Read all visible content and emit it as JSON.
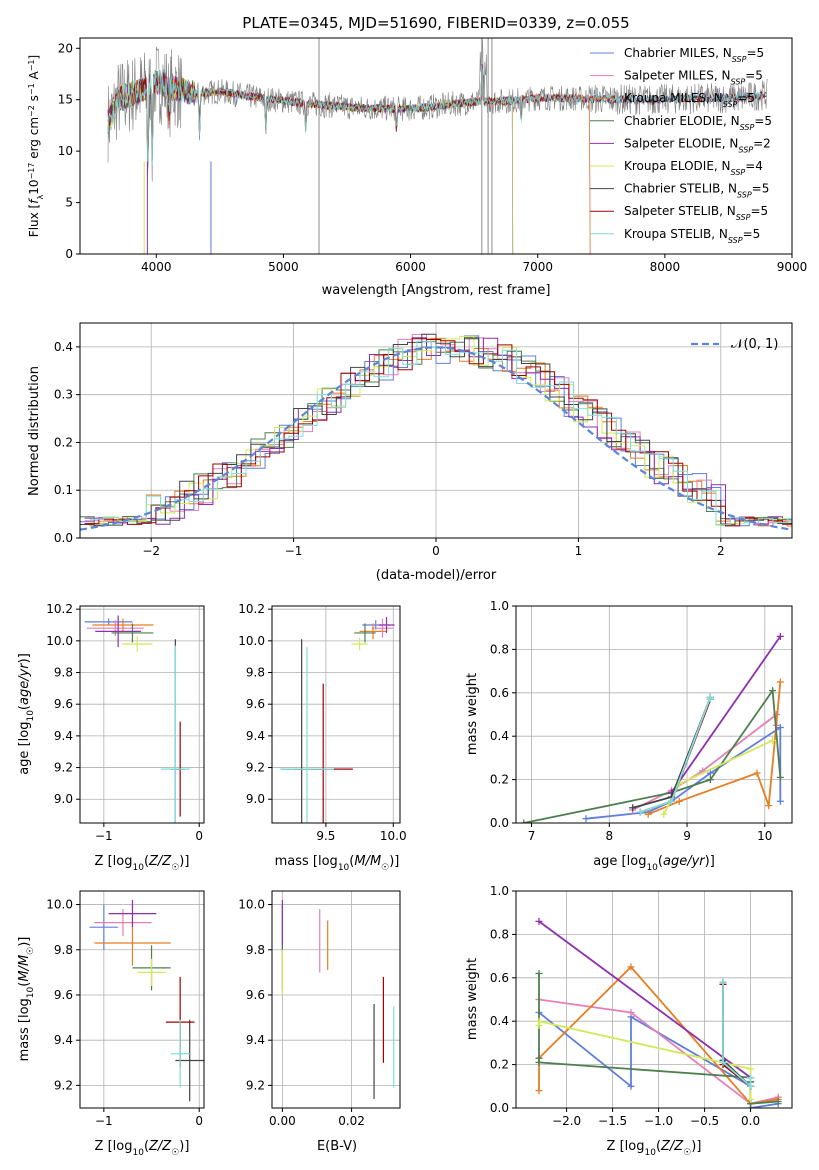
{
  "figure": {
    "title": "PLATE=0345, MJD=51690, FIBERID=0339, z=0.055"
  },
  "colors": {
    "Chabrier MILES": "#5f7fde",
    "Salpeter MILES": "#e57fb5",
    "Kroupa MILES": "#e67e22",
    "Chabrier ELODIE": "#4f7f4f",
    "Salpeter ELODIE": "#8e2fb0",
    "Kroupa ELODIE": "#d4e85a",
    "Chabrier STELIB": "#444444",
    "Salpeter STELIB": "#a00000",
    "Kroupa STELIB": "#7fdede",
    "data": "#808080"
  },
  "chart_data": [
    {
      "id": "spectrum",
      "type": "line",
      "xlabel": "wavelength [Angstrom, rest frame]",
      "ylabel": "Flux [f_λ10^-17 erg cm^-2 s^-1 A^-1]",
      "xlim": [
        3400,
        9000
      ],
      "ylim": [
        0,
        21
      ],
      "xticks": [
        4000,
        5000,
        6000,
        7000,
        8000,
        9000
      ],
      "yticks": [
        0,
        5,
        10,
        15,
        20
      ],
      "legend_position": "upper right",
      "legend": [
        {
          "name": "Chabrier MILES",
          "base": "Chabrier MILES, N",
          "sub": "SSP",
          "tail": "=5"
        },
        {
          "name": "Salpeter MILES",
          "base": "Salpeter MILES, N",
          "sub": "SSP",
          "tail": "=5"
        },
        {
          "name": "Kroupa MILES",
          "base": "Kroupa MILES, N",
          "sub": "SSP",
          "tail": "=5"
        },
        {
          "name": "Chabrier ELODIE",
          "base": "Chabrier ELODIE, N",
          "sub": "SSP",
          "tail": "=5"
        },
        {
          "name": "Salpeter ELODIE",
          "base": "Salpeter ELODIE, N",
          "sub": "SSP",
          "tail": "=2"
        },
        {
          "name": "Kroupa ELODIE",
          "base": "Kroupa ELODIE, N",
          "sub": "SSP",
          "tail": "=4"
        },
        {
          "name": "Chabrier STELIB",
          "base": "Chabrier STELIB, N",
          "sub": "SSP",
          "tail": "=5"
        },
        {
          "name": "Salpeter STELIB",
          "base": "Salpeter STELIB, N",
          "sub": "SSP",
          "tail": "=5"
        },
        {
          "name": "Kroupa STELIB",
          "base": "Kroupa STELIB, N",
          "sub": "SSP",
          "tail": "=5"
        }
      ],
      "continuum": [
        [
          3600,
          12.5
        ],
        [
          3650,
          13.5
        ],
        [
          3700,
          15
        ],
        [
          3800,
          15.5
        ],
        [
          3900,
          16
        ],
        [
          4000,
          16.8
        ],
        [
          4100,
          16.2
        ],
        [
          4300,
          15.6
        ],
        [
          4500,
          15.8
        ],
        [
          4800,
          15.2
        ],
        [
          5200,
          14.6
        ],
        [
          5600,
          14.2
        ],
        [
          6000,
          14.1
        ],
        [
          6500,
          14.8
        ],
        [
          6800,
          14.9
        ],
        [
          7000,
          15.2
        ],
        [
          7400,
          15.1
        ],
        [
          7800,
          15
        ],
        [
          8200,
          15.1
        ],
        [
          8600,
          15.2
        ],
        [
          8800,
          15.5
        ]
      ],
      "model_end": [
        {
          "name": "Chabrier MILES",
          "end": 8800
        },
        {
          "name": "Salpeter MILES",
          "end": 7410
        },
        {
          "name": "Kroupa MILES",
          "end": 7410
        },
        {
          "name": "Chabrier ELODIE",
          "end": 6800
        },
        {
          "name": "Salpeter ELODIE",
          "end": 6800
        },
        {
          "name": "Kroupa ELODIE",
          "end": 6800
        },
        {
          "name": "Chabrier STELIB",
          "end": 8800
        },
        {
          "name": "Salpeter STELIB",
          "end": 8800
        },
        {
          "name": "Kroupa STELIB",
          "end": 8800
        }
      ]
    },
    {
      "id": "residuals",
      "type": "line",
      "xlabel": "(data-model)/error",
      "ylabel": "Normed distribution",
      "xlim": [
        -2.5,
        2.5
      ],
      "ylim": [
        0,
        0.45
      ],
      "xticks": [
        -2,
        -1,
        0,
        1,
        2
      ],
      "yticks": [
        0.0,
        0.1,
        0.2,
        0.3,
        0.4
      ],
      "legend_position": "upper right",
      "reference": {
        "name": "N(0,1)",
        "label": "𝒩(0, 1)",
        "mean": 0,
        "sigma": 1
      }
    },
    {
      "id": "age_vs_z",
      "type": "scatter",
      "xlabel": "Z [log10(Z/Z☉)]",
      "ylabel": "age [log10(age/yr)]",
      "xlim": [
        -1.25,
        0.05
      ],
      "ylim": [
        8.85,
        10.22
      ],
      "xticks": [
        -1,
        0
      ],
      "yticks": [
        9.0,
        9.2,
        9.4,
        9.6,
        9.8,
        10.0,
        10.2
      ],
      "points": [
        {
          "name": "Chabrier MILES",
          "x": -0.95,
          "y": 10.12,
          "xerr": 0.25,
          "yerr": 0.02
        },
        {
          "name": "Salpeter MILES",
          "x": -0.88,
          "y": 10.08,
          "xerr": 0.3,
          "yerr": 0.05
        },
        {
          "name": "Kroupa MILES",
          "x": -0.8,
          "y": 10.1,
          "xerr": 0.32,
          "yerr": 0.04
        },
        {
          "name": "Chabrier ELODIE",
          "x": -0.7,
          "y": 10.05,
          "xerr": 0.22,
          "yerr": 0.06
        },
        {
          "name": "Salpeter ELODIE",
          "x": -0.85,
          "y": 10.06,
          "xerr": 0.24,
          "yerr": 0.1
        },
        {
          "name": "Kroupa ELODIE",
          "x": -0.65,
          "y": 9.98,
          "xerr": 0.16,
          "yerr": 0.05
        },
        {
          "name": "Chabrier STELIB",
          "x": -0.25,
          "y": 9.19,
          "xerr": 0.05,
          "yerr": 0.82
        },
        {
          "name": "Salpeter STELIB",
          "x": -0.2,
          "y": 9.19,
          "xerr": 0.05,
          "yerr": 0.3
        },
        {
          "name": "Kroupa STELIB",
          "x": -0.25,
          "y": 9.19,
          "xerr": 0.15,
          "yerr": 0.78
        }
      ]
    },
    {
      "id": "age_vs_mass",
      "type": "scatter",
      "xlabel": "mass [log10(M/M☉)]",
      "ylabel": "",
      "xlim": [
        9.1,
        10.05
      ],
      "ylim": [
        8.85,
        10.22
      ],
      "xticks": [
        9.5,
        10.0
      ],
      "yticks": [
        9.0,
        9.2,
        9.4,
        9.6,
        9.8,
        10.0,
        10.2
      ],
      "points": [
        {
          "name": "Chabrier MILES",
          "x": 9.87,
          "y": 10.1,
          "xerr": 0.1,
          "yerr": 0.03
        },
        {
          "name": "Salpeter MILES",
          "x": 9.92,
          "y": 10.08,
          "xerr": 0.08,
          "yerr": 0.06
        },
        {
          "name": "Kroupa MILES",
          "x": 9.85,
          "y": 10.06,
          "xerr": 0.1,
          "yerr": 0.05
        },
        {
          "name": "Chabrier ELODIE",
          "x": 9.79,
          "y": 10.05,
          "xerr": 0.08,
          "yerr": 0.06
        },
        {
          "name": "Salpeter ELODIE",
          "x": 9.95,
          "y": 10.1,
          "xerr": 0.06,
          "yerr": 0.05
        },
        {
          "name": "Kroupa ELODIE",
          "x": 9.75,
          "y": 9.98,
          "xerr": 0.06,
          "yerr": 0.04
        },
        {
          "name": "Chabrier STELIB",
          "x": 9.32,
          "y": 9.19,
          "xerr": 0.15,
          "yerr": 0.82
        },
        {
          "name": "Salpeter STELIB",
          "x": 9.48,
          "y": 9.19,
          "xerr": 0.22,
          "yerr": 0.54
        },
        {
          "name": "Kroupa STELIB",
          "x": 9.36,
          "y": 9.19,
          "xerr": 0.2,
          "yerr": 0.77
        }
      ]
    },
    {
      "id": "mass_weight_vs_age",
      "type": "line",
      "xlabel": "age [log10(age/yr)]",
      "ylabel": "mass weight",
      "xlim": [
        6.8,
        10.35
      ],
      "ylim": [
        0,
        1
      ],
      "xticks": [
        7,
        8,
        9,
        10
      ],
      "yticks": [
        0.0,
        0.2,
        0.4,
        0.6,
        0.8,
        1.0
      ],
      "series": [
        {
          "name": "Chabrier MILES",
          "x": [
            7.7,
            8.5,
            8.8,
            9.3,
            10.2,
            10.2
          ],
          "y": [
            0.02,
            0.05,
            0.1,
            0.23,
            0.44,
            0.1
          ]
        },
        {
          "name": "Salpeter MILES",
          "x": [
            8.3,
            8.8,
            9.2,
            10.15,
            10.15
          ],
          "y": [
            0.06,
            0.15,
            0.24,
            0.5,
            0.45
          ]
        },
        {
          "name": "Kroupa MILES",
          "x": [
            8.5,
            8.9,
            9.9,
            10.05,
            10.2
          ],
          "y": [
            0.04,
            0.1,
            0.23,
            0.08,
            0.65
          ]
        },
        {
          "name": "Chabrier ELODIE",
          "x": [
            6.9,
            8.8,
            9.3,
            10.1,
            10.2
          ],
          "y": [
            0.0,
            0.14,
            0.2,
            0.61,
            0.21
          ]
        },
        {
          "name": "Salpeter ELODIE",
          "x": [
            8.8,
            10.2
          ],
          "y": [
            0.14,
            0.86
          ]
        },
        {
          "name": "Kroupa ELODIE",
          "x": [
            8.7,
            8.9,
            10.1
          ],
          "y": [
            0.04,
            0.18,
            0.38
          ]
        },
        {
          "name": "Chabrier STELIB",
          "x": [
            8.3,
            8.8,
            9.3,
            9.3
          ],
          "y": [
            0.07,
            0.12,
            0.58,
            0.57
          ]
        },
        {
          "name": "Salpeter STELIB",
          "x": [
            8.4,
            8.8,
            9.3
          ],
          "y": [
            0.05,
            0.1,
            0.57
          ]
        },
        {
          "name": "Kroupa STELIB",
          "x": [
            8.4,
            8.8,
            9.3,
            9.3
          ],
          "y": [
            0.05,
            0.1,
            0.58,
            0.57
          ]
        }
      ]
    },
    {
      "id": "mass_vs_z",
      "type": "scatter",
      "xlabel": "Z [log10(Z/Z☉)]",
      "ylabel": "mass [log10(M/M☉)]",
      "xlim": [
        -1.25,
        0.05
      ],
      "ylim": [
        9.1,
        10.06
      ],
      "xticks": [
        -1,
        0
      ],
      "yticks": [
        9.2,
        9.4,
        9.6,
        9.8,
        10.0
      ],
      "points": [
        {
          "name": "Chabrier MILES",
          "x": -1.0,
          "y": 9.9,
          "xerr": 0.15,
          "yerr": 0.1
        },
        {
          "name": "Salpeter MILES",
          "x": -0.8,
          "y": 9.92,
          "xerr": 0.3,
          "yerr": 0.06
        },
        {
          "name": "Kroupa MILES",
          "x": -0.7,
          "y": 9.83,
          "xerr": 0.4,
          "yerr": 0.1
        },
        {
          "name": "Chabrier ELODIE",
          "x": -0.5,
          "y": 9.72,
          "xerr": 0.2,
          "yerr": 0.1
        },
        {
          "name": "Salpeter ELODIE",
          "x": -0.7,
          "y": 9.96,
          "xerr": 0.25,
          "yerr": 0.06
        },
        {
          "name": "Kroupa ELODIE",
          "x": -0.5,
          "y": 9.7,
          "xerr": 0.15,
          "yerr": 0.06
        },
        {
          "name": "Chabrier STELIB",
          "x": -0.1,
          "y": 9.31,
          "xerr": 0.15,
          "yerr": 0.18
        },
        {
          "name": "Salpeter STELIB",
          "x": -0.2,
          "y": 9.48,
          "xerr": 0.15,
          "yerr": 0.2
        },
        {
          "name": "Kroupa STELIB",
          "x": -0.2,
          "y": 9.34,
          "xerr": 0.1,
          "yerr": 0.15
        }
      ]
    },
    {
      "id": "mass_vs_ebv",
      "type": "scatter",
      "xlabel": "E(B-V)",
      "ylabel": "",
      "xlim": [
        -0.003,
        0.034
      ],
      "ylim": [
        9.1,
        10.06
      ],
      "xticks": [
        0.0,
        0.02
      ],
      "yticks": [
        9.2,
        9.4,
        9.6,
        9.8,
        10.0
      ],
      "points": [
        {
          "name": "Chabrier MILES",
          "x": 0.0,
          "y": 9.9,
          "xerr": 0,
          "yerr": 0.1
        },
        {
          "name": "Salpeter MILES",
          "x": 0.0108,
          "y": 9.84,
          "xerr": 0,
          "yerr": 0.14
        },
        {
          "name": "Kroupa MILES",
          "x": 0.0131,
          "y": 9.82,
          "xerr": 0,
          "yerr": 0.11
        },
        {
          "name": "Chabrier ELODIE",
          "x": 0.0,
          "y": 9.72,
          "xerr": 0,
          "yerr": 0.1
        },
        {
          "name": "Salpeter ELODIE",
          "x": 0.0,
          "y": 9.92,
          "xerr": 0,
          "yerr": 0.1
        },
        {
          "name": "Kroupa ELODIE",
          "x": 0.0,
          "y": 9.7,
          "xerr": 0,
          "yerr": 0.1
        },
        {
          "name": "Chabrier STELIB",
          "x": 0.0265,
          "y": 9.35,
          "xerr": 0,
          "yerr": 0.21
        },
        {
          "name": "Salpeter STELIB",
          "x": 0.0292,
          "y": 9.49,
          "xerr": 0,
          "yerr": 0.19
        },
        {
          "name": "Kroupa STELIB",
          "x": 0.0322,
          "y": 9.37,
          "xerr": 0,
          "yerr": 0.18
        }
      ]
    },
    {
      "id": "mass_weight_vs_z",
      "type": "line",
      "xlabel": "Z [log10(Z/Z☉)]",
      "ylabel": "mass weight",
      "xlim": [
        -2.55,
        0.45
      ],
      "ylim": [
        0,
        1
      ],
      "xticks": [
        -2.0,
        -1.5,
        -1.0,
        -0.5,
        0.0
      ],
      "yticks": [
        0.0,
        0.2,
        0.4,
        0.6,
        0.8,
        1.0
      ],
      "series": [
        {
          "name": "Chabrier MILES",
          "x": [
            -2.3,
            -1.3,
            -1.3,
            0.0,
            0.0,
            0.3
          ],
          "y": [
            0.44,
            0.1,
            0.42,
            0.1,
            0.0,
            0.02
          ]
        },
        {
          "name": "Salpeter MILES",
          "x": [
            -2.3,
            -1.3,
            0.0,
            0.3
          ],
          "y": [
            0.5,
            0.44,
            0.02,
            0.05
          ]
        },
        {
          "name": "Kroupa MILES",
          "x": [
            -2.3,
            -2.3,
            -1.3,
            0.0,
            0.3
          ],
          "y": [
            0.08,
            0.23,
            0.65,
            0.02,
            0.04
          ]
        },
        {
          "name": "Chabrier ELODIE",
          "x": [
            -2.3,
            -2.3,
            -2.3,
            0.0,
            0.0,
            0.3
          ],
          "y": [
            0.62,
            0.23,
            0.21,
            0.14,
            0.02,
            0.03
          ]
        },
        {
          "name": "Salpeter ELODIE",
          "x": [
            -2.3,
            0.0
          ],
          "y": [
            0.86,
            0.14
          ]
        },
        {
          "name": "Kroupa ELODIE",
          "x": [
            -2.3,
            -2.3,
            0.0,
            0.0
          ],
          "y": [
            0.38,
            0.4,
            0.18,
            0.04
          ]
        },
        {
          "name": "Chabrier STELIB",
          "x": [
            -0.3,
            -0.3,
            0.0,
            0.0
          ],
          "y": [
            0.58,
            0.22,
            0.1,
            0.12
          ]
        },
        {
          "name": "Salpeter STELIB",
          "x": [
            -0.3,
            -0.3,
            0.0
          ],
          "y": [
            0.57,
            0.2,
            0.1
          ]
        },
        {
          "name": "Kroupa STELIB",
          "x": [
            -0.3,
            -0.3,
            0.0,
            0.0
          ],
          "y": [
            0.58,
            0.21,
            0.1,
            0.14
          ]
        }
      ]
    }
  ]
}
